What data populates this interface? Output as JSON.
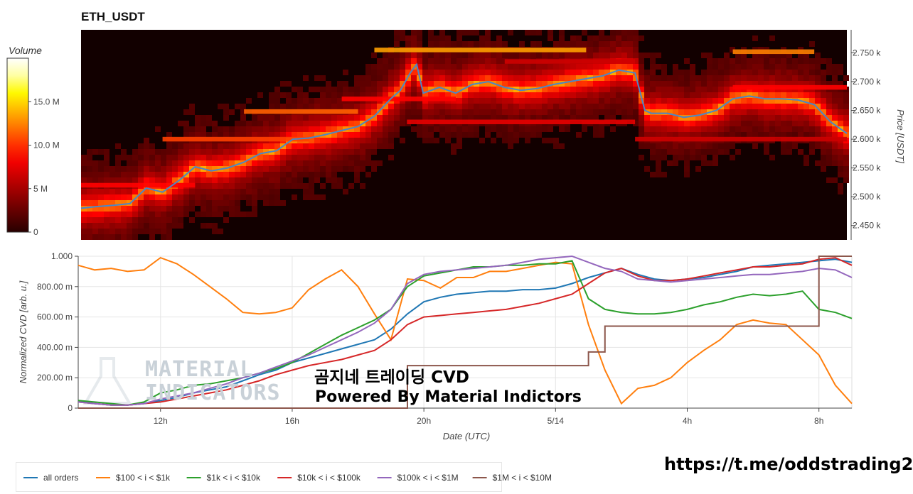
{
  "title": "ETH_USDT",
  "footer_link": "https://t.me/oddstrading2",
  "watermark": {
    "line1": "곰지네 트레이딩 CVD",
    "line2": "Powered By Material Indictors",
    "logo_line1": "MATERIAL",
    "logo_line2": "INDICATORS"
  },
  "colorbar": {
    "title": "Volume",
    "ticks": [
      "0",
      "5 M",
      "10.0 M",
      "15.0 M"
    ],
    "tick_values": [
      0,
      5,
      10,
      15
    ],
    "max": 20
  },
  "colors": {
    "all_orders": "#1f77b4",
    "s100_1k": "#ff7f0e",
    "s1k_10k": "#2ca02c",
    "s10k_100k": "#d62728",
    "s100k_1m": "#9467bd",
    "s1m_10m": "#8c564b",
    "price_line": "#4a86c8"
  },
  "chart_data": [
    {
      "type": "heatmap",
      "title": "ETH_USDT",
      "ylabel": "Price [USDT]",
      "ylim": [
        2425,
        2790
      ],
      "y_ticks": [
        2450,
        2500,
        2550,
        2600,
        2650,
        2700,
        2750
      ],
      "y_tick_labels": [
        "2.450 k",
        "2.500 k",
        "2.550 k",
        "2.600 k",
        "2.650 k",
        "2.700 k",
        "2.750 k"
      ],
      "xlim": [
        9.5,
        33.0
      ],
      "price_series": {
        "x": [
          9.5,
          10.0,
          10.5,
          11.0,
          11.5,
          12.0,
          12.5,
          13.0,
          13.5,
          14.0,
          14.5,
          15.0,
          15.5,
          16.0,
          16.5,
          17.0,
          17.5,
          18.0,
          18.5,
          19.0,
          19.3,
          19.6,
          19.8,
          20.0,
          20.5,
          21.0,
          21.5,
          22.0,
          22.5,
          23.0,
          23.5,
          24.0,
          24.5,
          25.0,
          25.5,
          26.0,
          26.5,
          26.8,
          27.0,
          27.5,
          28.0,
          28.5,
          29.0,
          29.5,
          30.0,
          30.5,
          31.0,
          31.5,
          32.0,
          32.5,
          33.0
        ],
        "y": [
          2480,
          2483,
          2485,
          2488,
          2515,
          2508,
          2528,
          2552,
          2545,
          2550,
          2560,
          2575,
          2580,
          2600,
          2602,
          2608,
          2615,
          2622,
          2640,
          2670,
          2685,
          2715,
          2730,
          2680,
          2690,
          2680,
          2695,
          2700,
          2690,
          2685,
          2688,
          2695,
          2700,
          2705,
          2710,
          2720,
          2715,
          2650,
          2645,
          2645,
          2638,
          2642,
          2650,
          2670,
          2675,
          2670,
          2670,
          2668,
          2660,
          2630,
          2610
        ]
      },
      "bands": [
        {
          "x0": 14.5,
          "x1": 18.0,
          "y": 2648,
          "h": 8,
          "v": 12
        },
        {
          "x0": 12.0,
          "x1": 16.5,
          "y": 2600,
          "h": 8,
          "v": 11
        },
        {
          "x0": 9.5,
          "x1": 13.0,
          "y": 2520,
          "h": 8,
          "v": 9
        },
        {
          "x0": 18.5,
          "x1": 25.0,
          "y": 2755,
          "h": 8,
          "v": 14
        },
        {
          "x0": 29.5,
          "x1": 32.0,
          "y": 2752,
          "h": 8,
          "v": 13
        },
        {
          "x0": 19.5,
          "x1": 26.5,
          "y": 2630,
          "h": 8,
          "v": 8
        },
        {
          "x0": 26.5,
          "x1": 33.0,
          "y": 2600,
          "h": 8,
          "v": 7
        },
        {
          "x0": 17.5,
          "x1": 21.0,
          "y": 2670,
          "h": 8,
          "v": 9
        },
        {
          "x0": 22.5,
          "x1": 26.5,
          "y": 2735,
          "h": 8,
          "v": 7
        },
        {
          "x0": 29.5,
          "x1": 33.0,
          "y": 2690,
          "h": 8,
          "v": 9
        }
      ]
    },
    {
      "type": "line",
      "xlabel": "Date (UTC)",
      "ylabel": "Normalized CVD [arb. u.]",
      "xlim": [
        9.5,
        33.0
      ],
      "ylim": [
        0,
        1.0
      ],
      "x_ticks": [
        12,
        16,
        20,
        24,
        28,
        32
      ],
      "x_tick_labels": [
        "12h",
        "16h",
        "20h",
        "5/14",
        "4h",
        "8h"
      ],
      "y_ticks": [
        0,
        0.2,
        0.4,
        0.6,
        0.8,
        1.0
      ],
      "y_tick_labels": [
        "0",
        "200.00 m",
        "400.00 m",
        "600.00 m",
        "800.00 m",
        "1.000"
      ],
      "x": [
        9.5,
        10.0,
        10.5,
        11.0,
        11.5,
        12.0,
        12.5,
        13.0,
        13.5,
        14.0,
        14.5,
        15.0,
        15.5,
        16.0,
        16.5,
        17.0,
        17.5,
        18.0,
        18.5,
        19.0,
        19.5,
        20.0,
        20.5,
        21.0,
        21.5,
        22.0,
        22.5,
        23.0,
        23.5,
        24.0,
        24.5,
        25.0,
        25.5,
        26.0,
        26.5,
        27.0,
        27.5,
        28.0,
        28.5,
        29.0,
        29.5,
        30.0,
        30.5,
        31.0,
        31.5,
        32.0,
        32.5,
        33.0
      ],
      "series": [
        {
          "name": "all orders",
          "color": "#1f77b4",
          "values": [
            0.05,
            0.03,
            0.02,
            0.02,
            0.03,
            0.05,
            0.07,
            0.1,
            0.12,
            0.14,
            0.18,
            0.22,
            0.25,
            0.3,
            0.33,
            0.36,
            0.39,
            0.42,
            0.45,
            0.52,
            0.62,
            0.7,
            0.73,
            0.75,
            0.76,
            0.77,
            0.77,
            0.78,
            0.78,
            0.79,
            0.82,
            0.86,
            0.89,
            0.92,
            0.88,
            0.85,
            0.84,
            0.85,
            0.86,
            0.88,
            0.9,
            0.93,
            0.94,
            0.95,
            0.96,
            0.97,
            0.98,
            0.96
          ]
        },
        {
          "name": "$100 < i < $1k",
          "color": "#ff7f0e",
          "values": [
            0.94,
            0.91,
            0.92,
            0.9,
            0.91,
            0.99,
            0.95,
            0.88,
            0.8,
            0.72,
            0.63,
            0.62,
            0.63,
            0.66,
            0.78,
            0.85,
            0.91,
            0.8,
            0.62,
            0.45,
            0.85,
            0.84,
            0.79,
            0.86,
            0.86,
            0.9,
            0.9,
            0.92,
            0.94,
            0.96,
            0.95,
            0.55,
            0.25,
            0.03,
            0.13,
            0.15,
            0.2,
            0.3,
            0.38,
            0.45,
            0.55,
            0.58,
            0.56,
            0.55,
            0.45,
            0.35,
            0.15,
            0.03
          ]
        },
        {
          "name": "$1k < i < $10k",
          "color": "#2ca02c",
          "values": [
            0.05,
            0.04,
            0.03,
            0.02,
            0.04,
            0.1,
            0.12,
            0.15,
            0.16,
            0.18,
            0.2,
            0.23,
            0.26,
            0.3,
            0.36,
            0.42,
            0.48,
            0.53,
            0.58,
            0.65,
            0.8,
            0.87,
            0.89,
            0.91,
            0.93,
            0.93,
            0.94,
            0.94,
            0.95,
            0.95,
            0.97,
            0.72,
            0.65,
            0.63,
            0.62,
            0.62,
            0.63,
            0.65,
            0.68,
            0.7,
            0.73,
            0.75,
            0.74,
            0.75,
            0.77,
            0.65,
            0.63,
            0.59
          ]
        },
        {
          "name": "$10k < i < $100k",
          "color": "#d62728",
          "values": [
            0.04,
            0.03,
            0.02,
            0.02,
            0.03,
            0.04,
            0.06,
            0.08,
            0.1,
            0.12,
            0.15,
            0.18,
            0.22,
            0.25,
            0.28,
            0.3,
            0.32,
            0.35,
            0.38,
            0.45,
            0.55,
            0.6,
            0.61,
            0.62,
            0.63,
            0.64,
            0.65,
            0.67,
            0.69,
            0.72,
            0.75,
            0.82,
            0.89,
            0.92,
            0.87,
            0.84,
            0.84,
            0.85,
            0.87,
            0.89,
            0.91,
            0.93,
            0.93,
            0.94,
            0.95,
            0.98,
            0.99,
            0.94
          ]
        },
        {
          "name": "$100k < i < $1M",
          "color": "#9467bd",
          "values": [
            0.04,
            0.03,
            0.02,
            0.02,
            0.03,
            0.06,
            0.08,
            0.1,
            0.13,
            0.16,
            0.2,
            0.23,
            0.27,
            0.31,
            0.35,
            0.4,
            0.45,
            0.5,
            0.56,
            0.65,
            0.82,
            0.88,
            0.9,
            0.91,
            0.92,
            0.93,
            0.94,
            0.96,
            0.98,
            0.99,
            1.0,
            0.96,
            0.92,
            0.9,
            0.85,
            0.84,
            0.83,
            0.84,
            0.85,
            0.86,
            0.87,
            0.88,
            0.88,
            0.89,
            0.9,
            0.92,
            0.91,
            0.86
          ]
        },
        {
          "name": "$1M < i < $10M",
          "color": "#8c564b",
          "values": [
            0,
            0,
            0,
            0,
            0,
            0,
            0,
            0,
            0,
            0,
            0,
            0,
            0,
            0,
            0,
            0,
            0,
            0,
            0,
            0.0,
            0.28,
            0.28,
            0.28,
            0.28,
            0.28,
            0.28,
            0.28,
            0.28,
            0.28,
            0.28,
            0.28,
            0.37,
            0.54,
            0.54,
            0.54,
            0.54,
            0.54,
            0.54,
            0.54,
            0.54,
            0.54,
            0.54,
            0.54,
            0.54,
            0.54,
            1.0,
            1.0,
            1.0
          ]
        }
      ]
    }
  ]
}
